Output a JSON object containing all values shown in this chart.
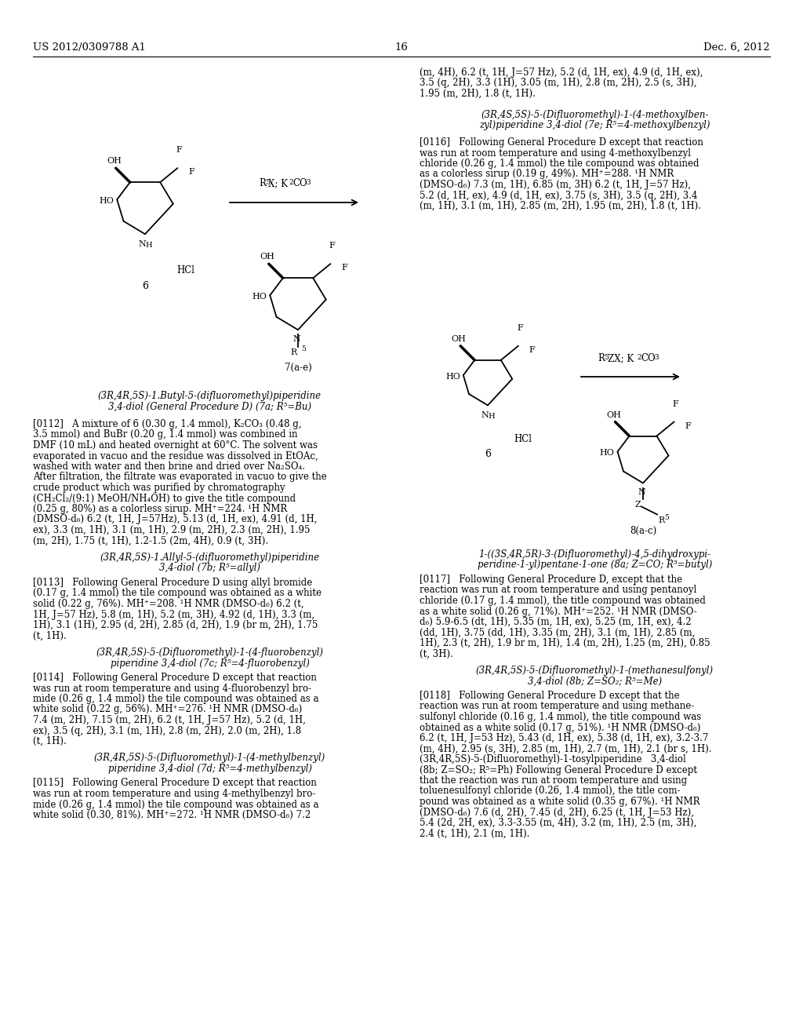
{
  "background_color": "#ffffff",
  "page_number": "16",
  "header_left": "US 2012/0309788 A1",
  "header_right": "Dec. 6, 2012",
  "figsize": [
    10.24,
    13.2
  ],
  "dpi": 100
}
